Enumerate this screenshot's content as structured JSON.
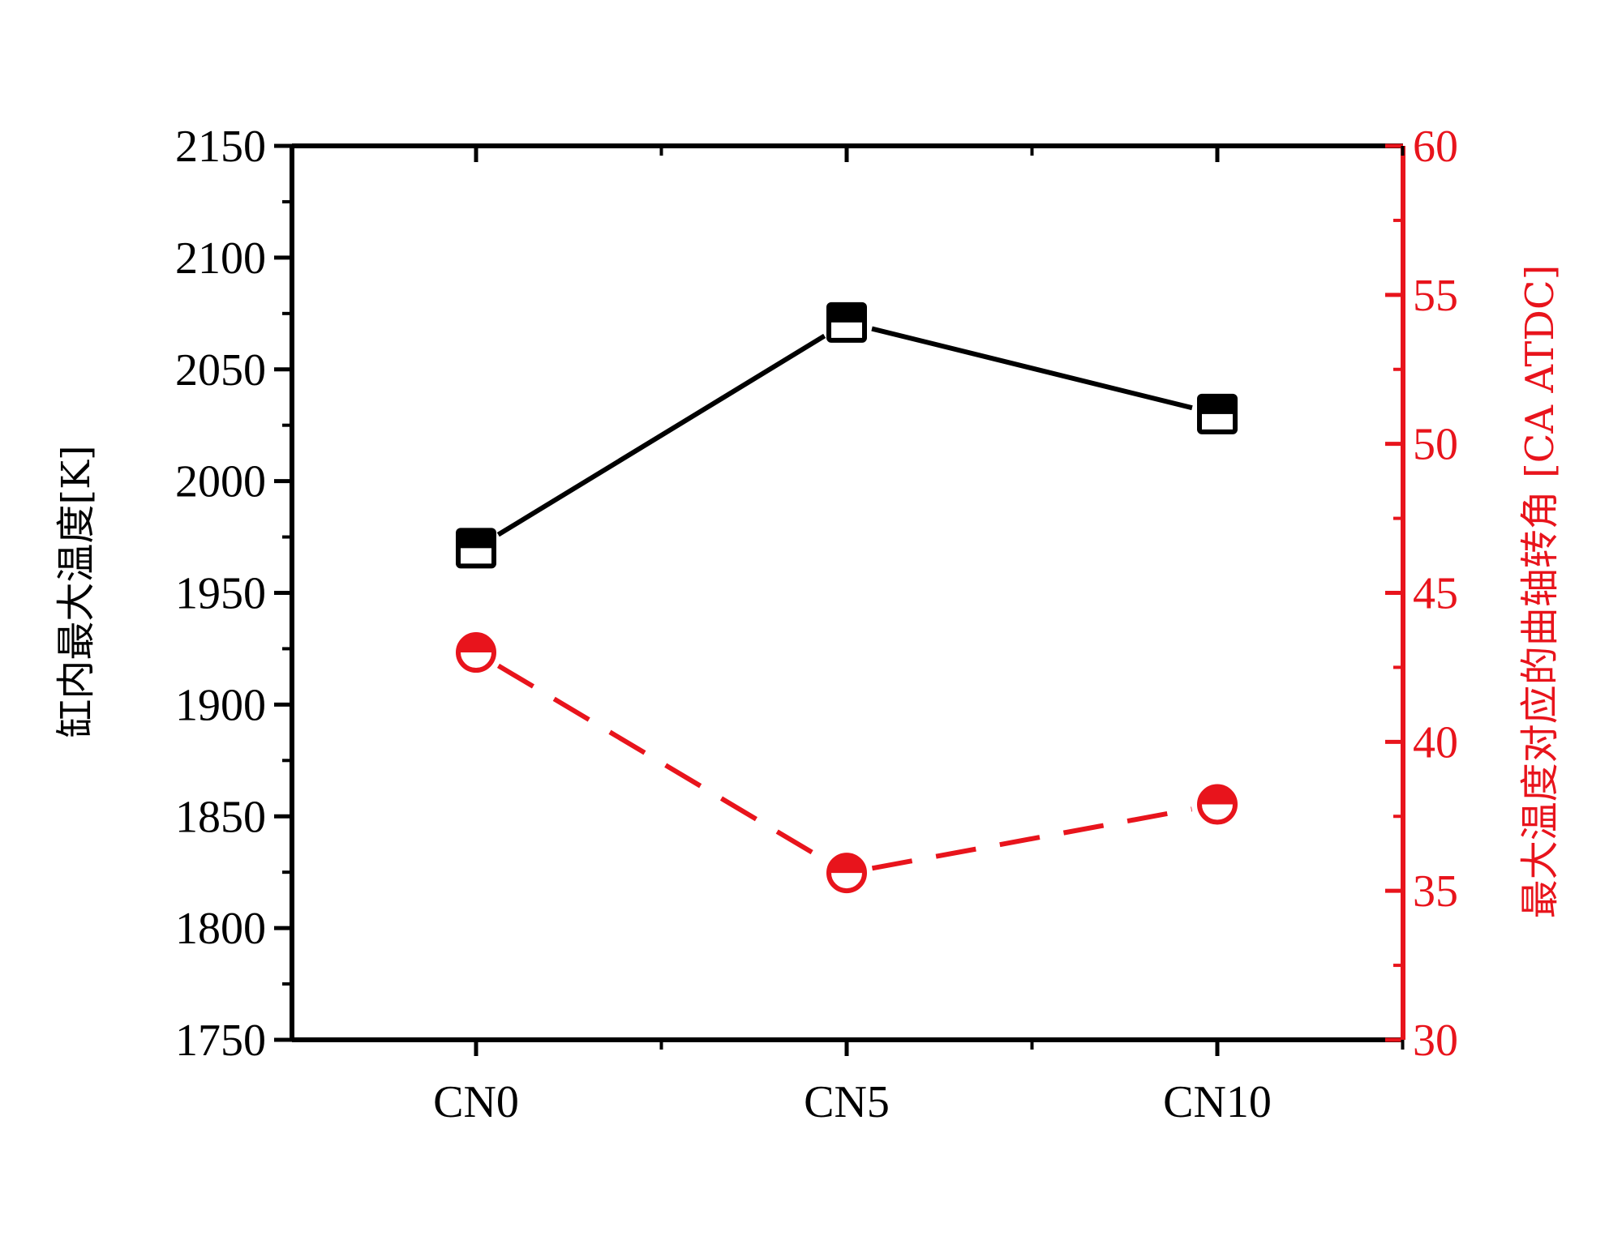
{
  "chart_data": {
    "type": "line",
    "title": "",
    "categories": [
      "CN0",
      "CN5",
      "CN10"
    ],
    "y_left": {
      "label": "缸内最大温度[K]",
      "ylim": [
        1750,
        2150
      ],
      "ticks": [
        1750,
        1800,
        1850,
        1900,
        1950,
        2000,
        2050,
        2100,
        2150
      ],
      "color": "#000000"
    },
    "y_right": {
      "label": "最大温度对应的曲轴转角 [CA ATDC]",
      "ylim": [
        30,
        60
      ],
      "ticks": [
        30,
        35,
        40,
        45,
        50,
        55,
        60
      ],
      "color": "#e8141c"
    },
    "series": [
      {
        "axis": "left",
        "values": [
          1970,
          2071,
          2030
        ],
        "color": "#000000",
        "line": "solid",
        "marker": "half-filled-square"
      },
      {
        "axis": "right",
        "values": [
          43.0,
          35.6,
          37.9
        ],
        "color": "#e8141c",
        "line": "dashed",
        "marker": "half-filled-circle"
      }
    ],
    "grid": false,
    "legend": "none"
  }
}
